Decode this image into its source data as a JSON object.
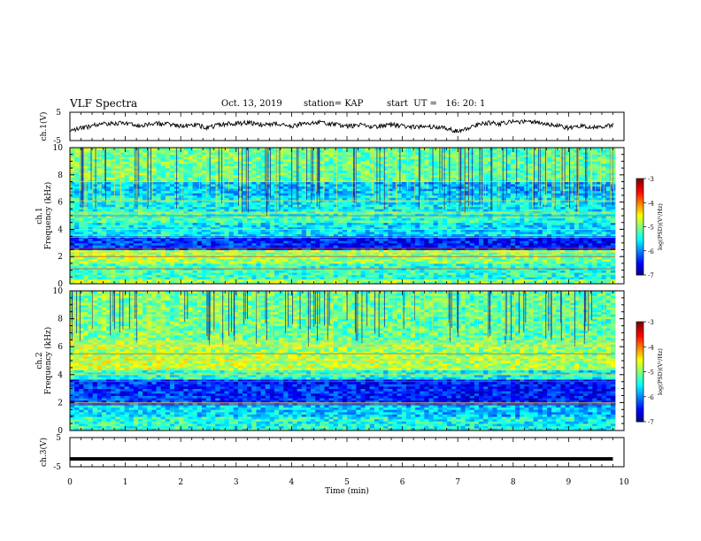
{
  "header": {
    "title": "VLF Spectra",
    "date": "Oct. 13, 2019",
    "station": "station= KAP",
    "start_time": "start  UT =   16: 20: 1"
  },
  "chart_data": [
    {
      "type": "line",
      "panel": "ch1_voltage",
      "ylabel": "ch.1(V)",
      "ylim": [
        -5,
        5
      ],
      "yticks": [
        "5",
        "-5"
      ],
      "xlim": [
        0,
        10
      ],
      "series": [
        {
          "x": [
            0,
            0.25,
            0.5,
            0.75,
            1,
            1.25,
            1.5,
            1.75,
            2,
            2.25,
            2.5,
            2.75,
            3,
            3.25,
            3.5,
            3.75,
            4,
            4.25,
            4.5,
            4.75,
            5,
            5.25,
            5.5,
            5.75,
            6,
            6.25,
            6.5,
            6.75,
            7,
            7.25,
            7.5,
            7.75,
            8,
            8.25,
            8.5,
            8.75,
            9,
            9.25,
            9.5,
            9.8
          ],
          "y": [
            -1.2,
            -0.5,
            0.6,
            1.0,
            1.2,
            0.2,
            0.9,
            1.0,
            0.0,
            0.6,
            -0.5,
            0.8,
            1.0,
            1.3,
            0.5,
            0.9,
            0.0,
            1.2,
            1.4,
            0.8,
            0.0,
            0.5,
            -0.3,
            0.6,
            0.2,
            -0.2,
            0.0,
            -0.4,
            -1.8,
            0.0,
            1.2,
            1.0,
            1.6,
            1.8,
            1.4,
            0.5,
            -0.5,
            0.2,
            -0.3,
            0.5
          ]
        }
      ]
    },
    {
      "type": "heatmap",
      "panel": "ch1_spectrogram",
      "ylabel": "ch.1 Frequency (kHz)",
      "ylim": [
        0,
        10
      ],
      "yticks": [
        "0",
        "2",
        "4",
        "6",
        "8",
        "10"
      ],
      "xlim": [
        0,
        10
      ],
      "colorbar": {
        "label": "log(PSD)(V²/Hz)",
        "range": [
          -7,
          -3
        ],
        "ticks": [
          "-3",
          "-4",
          "-5",
          "-6",
          "-7"
        ]
      }
    },
    {
      "type": "heatmap",
      "panel": "ch2_spectrogram",
      "ylabel": "ch.2 Frequency (kHz)",
      "ylim": [
        0,
        10
      ],
      "yticks": [
        "0",
        "2",
        "4",
        "6",
        "8",
        "10"
      ],
      "xlim": [
        0,
        10
      ],
      "colorbar": {
        "label": "log(PSD)(V²/Hz)",
        "range": [
          -7,
          -3
        ],
        "ticks": [
          "-3",
          "-4",
          "-5",
          "-6",
          "-7"
        ]
      }
    },
    {
      "type": "line",
      "panel": "ch3_voltage",
      "ylabel": "ch.3(V)",
      "ylim": [
        -5,
        5
      ],
      "yticks": [
        "5",
        "-5"
      ],
      "xlim": [
        0,
        10
      ],
      "series": [
        {
          "x": [
            0,
            9.8
          ],
          "y": [
            -2.3,
            -2.3
          ]
        }
      ]
    }
  ],
  "xaxis": {
    "label": "Time  (min)",
    "ticks": [
      "0",
      "1",
      "2",
      "3",
      "4",
      "5",
      "6",
      "7",
      "8",
      "9",
      "10"
    ]
  },
  "colors": {
    "frame": "#000000",
    "background": "#ffffff"
  }
}
